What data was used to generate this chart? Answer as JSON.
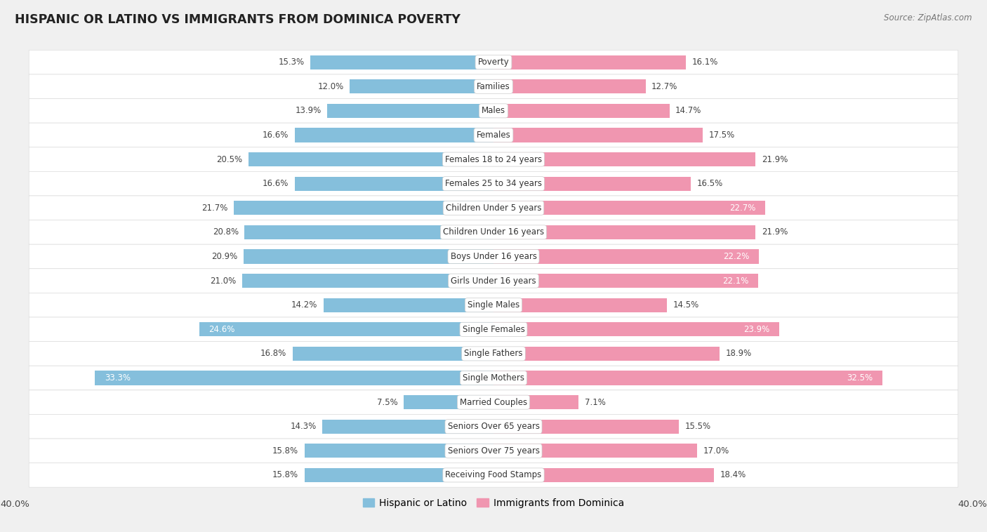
{
  "title": "HISPANIC OR LATINO VS IMMIGRANTS FROM DOMINICA POVERTY",
  "source": "Source: ZipAtlas.com",
  "categories": [
    "Poverty",
    "Families",
    "Males",
    "Females",
    "Females 18 to 24 years",
    "Females 25 to 34 years",
    "Children Under 5 years",
    "Children Under 16 years",
    "Boys Under 16 years",
    "Girls Under 16 years",
    "Single Males",
    "Single Females",
    "Single Fathers",
    "Single Mothers",
    "Married Couples",
    "Seniors Over 65 years",
    "Seniors Over 75 years",
    "Receiving Food Stamps"
  ],
  "hispanic_values": [
    15.3,
    12.0,
    13.9,
    16.6,
    20.5,
    16.6,
    21.7,
    20.8,
    20.9,
    21.0,
    14.2,
    24.6,
    16.8,
    33.3,
    7.5,
    14.3,
    15.8,
    15.8
  ],
  "dominica_values": [
    16.1,
    12.7,
    14.7,
    17.5,
    21.9,
    16.5,
    22.7,
    21.9,
    22.2,
    22.1,
    14.5,
    23.9,
    18.9,
    32.5,
    7.1,
    15.5,
    17.0,
    18.4
  ],
  "hispanic_color": "#85bfdc",
  "dominica_color": "#f096b0",
  "background_color": "#f0f0f0",
  "row_color": "#ffffff",
  "xlim": 40.0,
  "legend_labels": [
    "Hispanic or Latino",
    "Immigrants from Dominica"
  ],
  "bar_height": 0.58,
  "label_inside_threshold": 22.0,
  "value_label_fontsize": 8.5,
  "category_fontsize": 8.5
}
